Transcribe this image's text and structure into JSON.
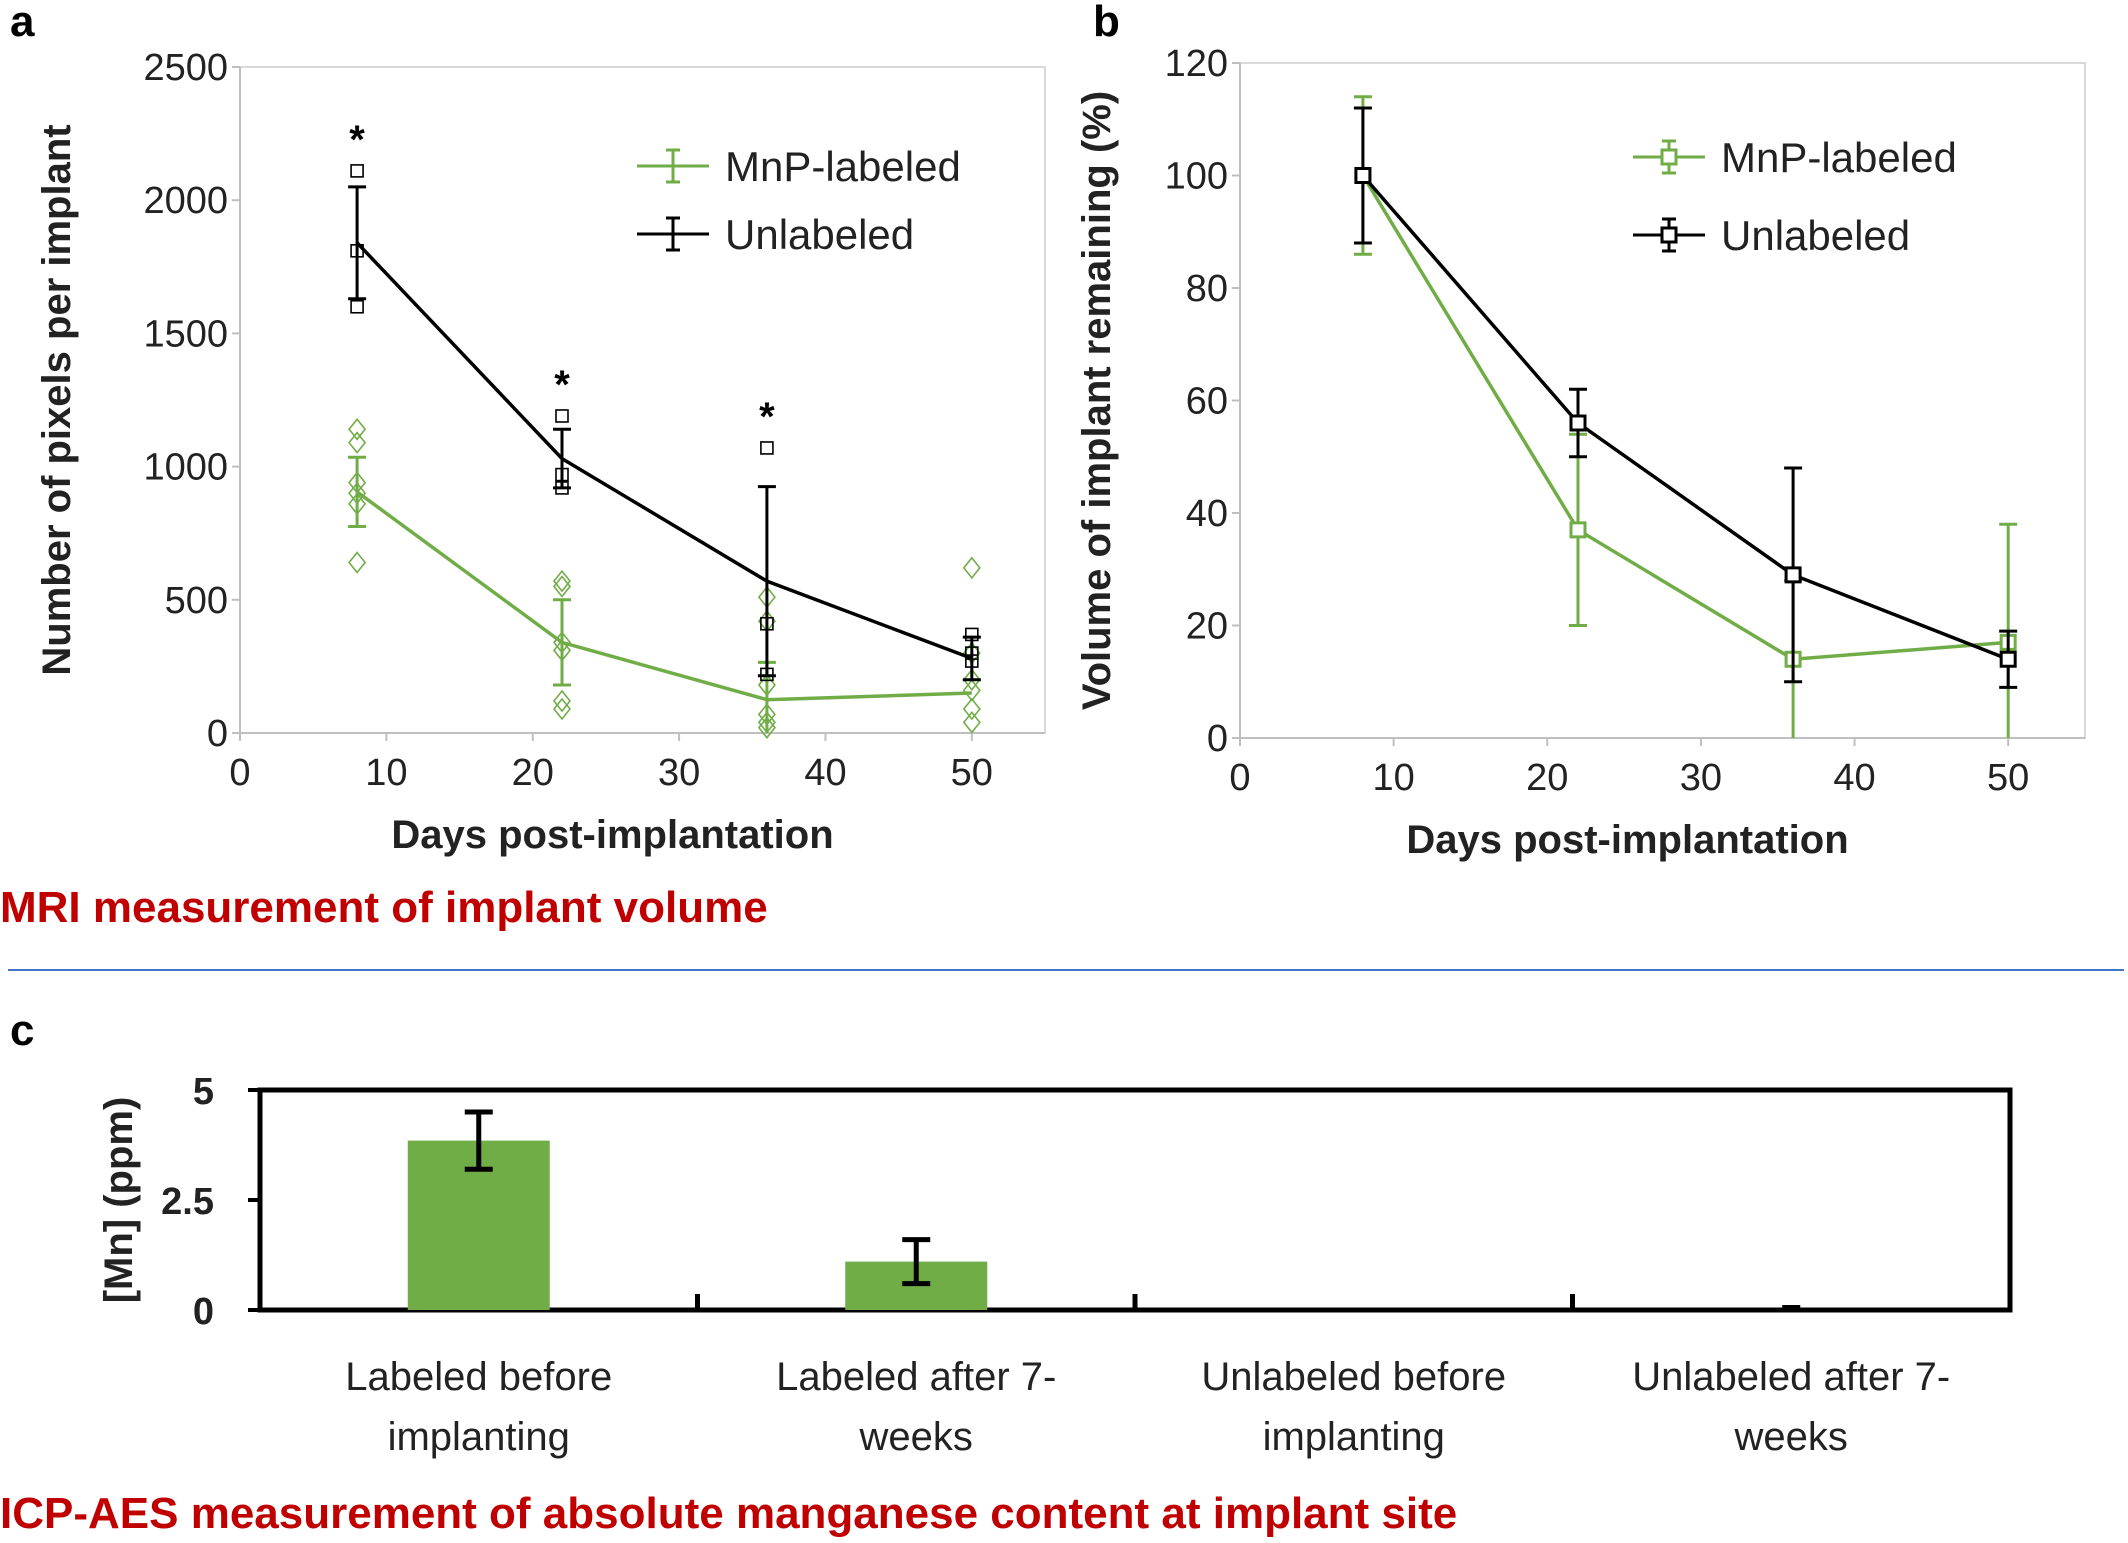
{
  "panels": {
    "a": "a",
    "b": "b",
    "c": "c"
  },
  "section_titles": {
    "mri": "MRI measurement of implant volume",
    "icp": "ICP-AES measurement of absolute manganese content at implant site"
  },
  "colors": {
    "green": "#70ad47",
    "black": "#000000",
    "title_red": "#c00000",
    "divider_blue": "#4472c4"
  },
  "chart_data": [
    {
      "id": "a",
      "type": "line",
      "xlabel": "Days post-implantation",
      "ylabel": "Number of pixels per implant",
      "xlim": [
        0,
        55
      ],
      "ylim": [
        0,
        2500
      ],
      "xticks": [
        0,
        10,
        20,
        30,
        40,
        50
      ],
      "yticks": [
        0,
        500,
        1000,
        1500,
        2000,
        2500
      ],
      "legend": "top-right",
      "x": [
        8,
        22,
        36,
        50
      ],
      "series": [
        {
          "name": "MnP-labeled",
          "color": "#70ad47",
          "values": [
            905,
            340,
            125,
            150
          ],
          "error": [
            130,
            160,
            140,
            0
          ],
          "points": [
            [
              1140,
              1090,
              940,
              900,
              860,
              640
            ],
            [
              570,
              550,
              340,
              310,
              120,
              90
            ],
            [
              510,
              420,
              180,
              70,
              40,
              20
            ],
            [
              620,
              300,
              200,
              160,
              90,
              40
            ]
          ]
        },
        {
          "name": "Unlabeled",
          "color": "#000000",
          "values": [
            1840,
            1030,
            570,
            280
          ],
          "error": [
            210,
            110,
            355,
            80
          ],
          "points": [
            [
              2110,
              1810,
              1600
            ],
            [
              1190,
              970,
              920
            ],
            [
              1070,
              410,
              220
            ],
            [
              370,
              300,
              270
            ]
          ]
        }
      ],
      "annotations": [
        "*",
        "*",
        "*"
      ]
    },
    {
      "id": "b",
      "type": "line",
      "xlabel": "Days post-implantation",
      "ylabel": "Volume of implant remaining (%)",
      "xlim": [
        0,
        55
      ],
      "ylim": [
        0,
        120
      ],
      "xticks": [
        0,
        10,
        20,
        30,
        40,
        50
      ],
      "yticks": [
        0,
        20,
        40,
        60,
        80,
        100,
        120
      ],
      "legend": "top-right",
      "x": [
        8,
        22,
        36,
        50
      ],
      "series": [
        {
          "name": "MnP-labeled",
          "color": "#70ad47",
          "values": [
            100,
            37,
            14,
            17
          ],
          "error": [
            14,
            17,
            14,
            21
          ]
        },
        {
          "name": "Unlabeled",
          "color": "#000000",
          "values": [
            100,
            56,
            29,
            14
          ],
          "error": [
            12,
            6,
            19,
            5
          ]
        }
      ]
    },
    {
      "id": "c",
      "type": "bar",
      "ylabel": "[Mn] (ppm)",
      "ylim": [
        0,
        5
      ],
      "yticks": [
        0,
        2.5,
        5
      ],
      "ytick_labels": [
        "0",
        "2.5",
        "5"
      ],
      "categories": [
        [
          "Labeled before",
          "implanting"
        ],
        [
          "Labeled after 7-",
          "weeks"
        ],
        [
          "Unlabeled before",
          "implanting"
        ],
        [
          "Unlabeled after 7-",
          "weeks"
        ]
      ],
      "values": [
        3.85,
        1.1,
        0,
        0
      ],
      "error": [
        0.65,
        0.5,
        0,
        0
      ],
      "color": "#70ad47"
    }
  ]
}
